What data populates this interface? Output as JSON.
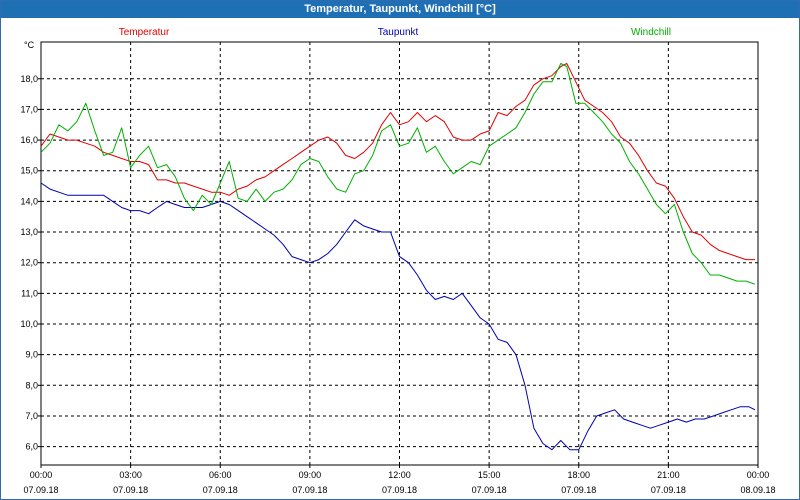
{
  "window": {
    "title": "Temperatur, Taupunkt, Windchill [°C]"
  },
  "chart_data": {
    "type": "line",
    "title": "Temperatur, Taupunkt, Windchill [°C]",
    "ylabel": "°C",
    "xlabel": "",
    "ylim": [
      5.4,
      19.2
    ],
    "xlim": [
      0,
      24
    ],
    "grid": true,
    "legend_position": "top",
    "y_ticks": [
      "6,0",
      "7,0",
      "8,0",
      "9,0",
      "10,0",
      "11,0",
      "12,0",
      "13,0",
      "14,0",
      "15,0",
      "16,0",
      "17,0",
      "18,0"
    ],
    "x_ticks": [
      {
        "time": "00:00",
        "date": "07.09.18"
      },
      {
        "time": "03:00",
        "date": "07.09.18"
      },
      {
        "time": "06:00",
        "date": "07.09.18"
      },
      {
        "time": "09:00",
        "date": "07.09.18"
      },
      {
        "time": "12:00",
        "date": "07.09.18"
      },
      {
        "time": "15:00",
        "date": "07.09.18"
      },
      {
        "time": "18:00",
        "date": "07.09.18"
      },
      {
        "time": "21:00",
        "date": "07.09.18"
      },
      {
        "time": "00:00",
        "date": "08.09.18"
      }
    ],
    "series": [
      {
        "name": "Temperatur",
        "color": "#e00000",
        "points": [
          [
            0.0,
            15.8
          ],
          [
            0.3,
            16.2
          ],
          [
            0.6,
            16.1
          ],
          [
            0.9,
            16.0
          ],
          [
            1.2,
            16.0
          ],
          [
            1.5,
            15.9
          ],
          [
            1.8,
            15.8
          ],
          [
            2.1,
            15.6
          ],
          [
            2.4,
            15.5
          ],
          [
            2.7,
            15.4
          ],
          [
            3.0,
            15.3
          ],
          [
            3.3,
            15.3
          ],
          [
            3.6,
            15.2
          ],
          [
            3.9,
            14.7
          ],
          [
            4.2,
            14.7
          ],
          [
            4.5,
            14.6
          ],
          [
            4.8,
            14.6
          ],
          [
            5.1,
            14.5
          ],
          [
            5.4,
            14.4
          ],
          [
            5.7,
            14.3
          ],
          [
            6.0,
            14.3
          ],
          [
            6.3,
            14.2
          ],
          [
            6.6,
            14.4
          ],
          [
            6.9,
            14.5
          ],
          [
            7.2,
            14.7
          ],
          [
            7.5,
            14.8
          ],
          [
            7.8,
            15.0
          ],
          [
            8.1,
            15.2
          ],
          [
            8.4,
            15.4
          ],
          [
            8.7,
            15.6
          ],
          [
            9.0,
            15.8
          ],
          [
            9.3,
            16.0
          ],
          [
            9.6,
            16.1
          ],
          [
            9.9,
            15.9
          ],
          [
            10.2,
            15.5
          ],
          [
            10.5,
            15.4
          ],
          [
            10.8,
            15.6
          ],
          [
            11.1,
            15.9
          ],
          [
            11.4,
            16.5
          ],
          [
            11.7,
            16.9
          ],
          [
            12.0,
            16.5
          ],
          [
            12.3,
            16.6
          ],
          [
            12.6,
            16.9
          ],
          [
            12.9,
            16.6
          ],
          [
            13.2,
            16.8
          ],
          [
            13.5,
            16.6
          ],
          [
            13.8,
            16.1
          ],
          [
            14.1,
            16.0
          ],
          [
            14.4,
            16.0
          ],
          [
            14.7,
            16.2
          ],
          [
            15.0,
            16.3
          ],
          [
            15.3,
            16.9
          ],
          [
            15.6,
            16.8
          ],
          [
            15.9,
            17.1
          ],
          [
            16.2,
            17.3
          ],
          [
            16.5,
            17.8
          ],
          [
            16.8,
            18.0
          ],
          [
            17.1,
            18.1
          ],
          [
            17.4,
            18.4
          ],
          [
            17.6,
            18.5
          ],
          [
            17.9,
            17.9
          ],
          [
            18.2,
            17.3
          ],
          [
            18.5,
            17.1
          ],
          [
            18.8,
            16.9
          ],
          [
            19.1,
            16.6
          ],
          [
            19.4,
            16.1
          ],
          [
            19.7,
            15.9
          ],
          [
            20.0,
            15.5
          ],
          [
            20.3,
            15.0
          ],
          [
            20.6,
            14.6
          ],
          [
            20.9,
            14.5
          ],
          [
            21.2,
            14.1
          ],
          [
            21.5,
            13.5
          ],
          [
            21.8,
            13.0
          ],
          [
            22.1,
            12.9
          ],
          [
            22.4,
            12.6
          ],
          [
            22.7,
            12.4
          ],
          [
            23.0,
            12.3
          ],
          [
            23.3,
            12.2
          ],
          [
            23.6,
            12.1
          ],
          [
            23.9,
            12.1
          ]
        ]
      },
      {
        "name": "Taupunkt",
        "color": "#0000b0",
        "points": [
          [
            0.0,
            14.6
          ],
          [
            0.3,
            14.4
          ],
          [
            0.6,
            14.3
          ],
          [
            0.9,
            14.2
          ],
          [
            1.2,
            14.2
          ],
          [
            1.5,
            14.2
          ],
          [
            1.8,
            14.2
          ],
          [
            2.1,
            14.2
          ],
          [
            2.4,
            14.0
          ],
          [
            2.7,
            13.8
          ],
          [
            3.0,
            13.7
          ],
          [
            3.3,
            13.7
          ],
          [
            3.6,
            13.6
          ],
          [
            3.9,
            13.8
          ],
          [
            4.2,
            14.0
          ],
          [
            4.5,
            13.9
          ],
          [
            4.8,
            13.8
          ],
          [
            5.1,
            13.8
          ],
          [
            5.4,
            13.8
          ],
          [
            5.7,
            13.9
          ],
          [
            6.0,
            14.0
          ],
          [
            6.3,
            13.9
          ],
          [
            6.6,
            13.7
          ],
          [
            6.9,
            13.5
          ],
          [
            7.2,
            13.3
          ],
          [
            7.5,
            13.1
          ],
          [
            7.8,
            12.9
          ],
          [
            8.1,
            12.6
          ],
          [
            8.4,
            12.2
          ],
          [
            8.7,
            12.1
          ],
          [
            9.0,
            12.0
          ],
          [
            9.3,
            12.1
          ],
          [
            9.6,
            12.3
          ],
          [
            9.9,
            12.6
          ],
          [
            10.2,
            13.0
          ],
          [
            10.5,
            13.4
          ],
          [
            10.8,
            13.2
          ],
          [
            11.1,
            13.1
          ],
          [
            11.4,
            13.0
          ],
          [
            11.7,
            13.0
          ],
          [
            12.0,
            12.2
          ],
          [
            12.3,
            12.0
          ],
          [
            12.6,
            11.6
          ],
          [
            12.9,
            11.1
          ],
          [
            13.2,
            10.8
          ],
          [
            13.5,
            10.9
          ],
          [
            13.8,
            10.8
          ],
          [
            14.1,
            11.0
          ],
          [
            14.4,
            10.6
          ],
          [
            14.7,
            10.2
          ],
          [
            15.0,
            10.0
          ],
          [
            15.3,
            9.5
          ],
          [
            15.6,
            9.4
          ],
          [
            15.9,
            9.0
          ],
          [
            16.2,
            8.0
          ],
          [
            16.5,
            6.6
          ],
          [
            16.8,
            6.1
          ],
          [
            17.1,
            5.9
          ],
          [
            17.4,
            6.2
          ],
          [
            17.7,
            5.9
          ],
          [
            18.0,
            5.9
          ],
          [
            18.3,
            6.5
          ],
          [
            18.6,
            7.0
          ],
          [
            18.9,
            7.1
          ],
          [
            19.2,
            7.2
          ],
          [
            19.5,
            6.9
          ],
          [
            19.8,
            6.8
          ],
          [
            20.1,
            6.7
          ],
          [
            20.4,
            6.6
          ],
          [
            20.7,
            6.7
          ],
          [
            21.0,
            6.8
          ],
          [
            21.3,
            6.9
          ],
          [
            21.6,
            6.8
          ],
          [
            21.9,
            6.9
          ],
          [
            22.2,
            6.9
          ],
          [
            22.5,
            7.0
          ],
          [
            22.8,
            7.1
          ],
          [
            23.1,
            7.2
          ],
          [
            23.4,
            7.3
          ],
          [
            23.7,
            7.3
          ],
          [
            23.9,
            7.2
          ]
        ]
      },
      {
        "name": "Windchill",
        "color": "#00b000",
        "points": [
          [
            0.0,
            15.6
          ],
          [
            0.3,
            15.9
          ],
          [
            0.6,
            16.5
          ],
          [
            0.9,
            16.3
          ],
          [
            1.2,
            16.6
          ],
          [
            1.5,
            17.2
          ],
          [
            1.8,
            16.3
          ],
          [
            2.1,
            15.5
          ],
          [
            2.4,
            15.6
          ],
          [
            2.7,
            16.4
          ],
          [
            3.0,
            15.1
          ],
          [
            3.3,
            15.5
          ],
          [
            3.6,
            15.8
          ],
          [
            3.9,
            15.1
          ],
          [
            4.2,
            15.2
          ],
          [
            4.5,
            14.8
          ],
          [
            4.8,
            14.1
          ],
          [
            5.1,
            13.7
          ],
          [
            5.4,
            14.2
          ],
          [
            5.7,
            13.9
          ],
          [
            6.0,
            14.6
          ],
          [
            6.3,
            15.3
          ],
          [
            6.6,
            14.1
          ],
          [
            6.9,
            14.0
          ],
          [
            7.2,
            14.4
          ],
          [
            7.5,
            14.0
          ],
          [
            7.8,
            14.3
          ],
          [
            8.1,
            14.4
          ],
          [
            8.4,
            14.7
          ],
          [
            8.7,
            15.2
          ],
          [
            9.0,
            15.4
          ],
          [
            9.3,
            15.3
          ],
          [
            9.6,
            14.8
          ],
          [
            9.9,
            14.4
          ],
          [
            10.2,
            14.3
          ],
          [
            10.5,
            14.9
          ],
          [
            10.8,
            15.0
          ],
          [
            11.1,
            15.5
          ],
          [
            11.4,
            16.3
          ],
          [
            11.7,
            16.5
          ],
          [
            12.0,
            15.8
          ],
          [
            12.3,
            15.9
          ],
          [
            12.6,
            16.4
          ],
          [
            12.9,
            15.6
          ],
          [
            13.2,
            15.8
          ],
          [
            13.5,
            15.3
          ],
          [
            13.8,
            14.9
          ],
          [
            14.1,
            15.1
          ],
          [
            14.4,
            15.3
          ],
          [
            14.7,
            15.2
          ],
          [
            15.0,
            15.8
          ],
          [
            15.3,
            16.0
          ],
          [
            15.6,
            16.2
          ],
          [
            15.9,
            16.4
          ],
          [
            16.2,
            16.9
          ],
          [
            16.5,
            17.5
          ],
          [
            16.8,
            17.9
          ],
          [
            17.1,
            17.9
          ],
          [
            17.4,
            18.5
          ],
          [
            17.6,
            18.4
          ],
          [
            17.9,
            17.2
          ],
          [
            18.2,
            17.2
          ],
          [
            18.5,
            16.9
          ],
          [
            18.8,
            16.6
          ],
          [
            19.1,
            16.2
          ],
          [
            19.4,
            15.9
          ],
          [
            19.7,
            15.3
          ],
          [
            20.0,
            14.9
          ],
          [
            20.3,
            14.4
          ],
          [
            20.6,
            13.9
          ],
          [
            20.9,
            13.6
          ],
          [
            21.2,
            13.9
          ],
          [
            21.5,
            13.0
          ],
          [
            21.8,
            12.3
          ],
          [
            22.1,
            12.0
          ],
          [
            22.4,
            11.6
          ],
          [
            22.7,
            11.6
          ],
          [
            23.0,
            11.5
          ],
          [
            23.3,
            11.4
          ],
          [
            23.6,
            11.4
          ],
          [
            23.9,
            11.3
          ]
        ]
      }
    ]
  }
}
